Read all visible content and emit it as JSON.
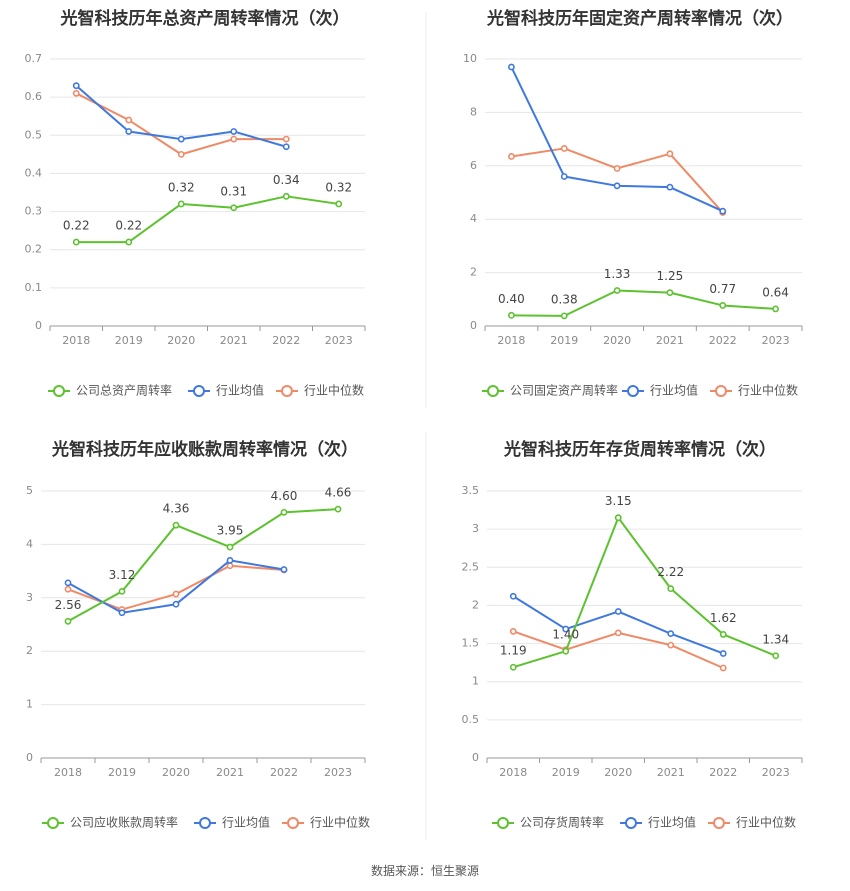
{
  "source": "数据来源：恒生聚源",
  "colors": {
    "company": "#5cc22e",
    "average": "#3f78de",
    "median": "#f08a66",
    "grid": "#e6e6e6",
    "axis": "#999999"
  },
  "chart_data": [
    {
      "type": "line",
      "title": "光智科技历年总资产周转率情况（次）",
      "categories": [
        "2018",
        "2019",
        "2020",
        "2021",
        "2022",
        "2023"
      ],
      "yticks": [
        "0",
        "0.1",
        "0.2",
        "0.3",
        "0.4",
        "0.5",
        "0.6",
        "0.7"
      ],
      "ylim": [
        0,
        0.7
      ],
      "series": [
        {
          "name": "公司总资产周转率",
          "key": "company",
          "values": [
            0.22,
            0.22,
            0.32,
            0.31,
            0.34,
            0.32
          ],
          "labels": [
            "0.22",
            "0.22",
            "0.32",
            "0.31",
            "0.34",
            "0.32"
          ]
        },
        {
          "name": "行业均值",
          "key": "average",
          "values": [
            0.63,
            0.51,
            0.49,
            0.51,
            0.47,
            null
          ]
        },
        {
          "name": "行业中位数",
          "key": "median",
          "values": [
            0.61,
            0.54,
            0.45,
            0.49,
            0.49,
            null
          ]
        }
      ]
    },
    {
      "type": "line",
      "title": "光智科技历年固定资产周转率情况（次）",
      "categories": [
        "2018",
        "2019",
        "2020",
        "2021",
        "2022",
        "2023"
      ],
      "yticks": [
        "0",
        "2",
        "4",
        "6",
        "8",
        "10"
      ],
      "ylim": [
        0,
        10
      ],
      "series": [
        {
          "name": "公司固定资产周转率",
          "key": "company",
          "values": [
            0.4,
            0.38,
            1.33,
            1.25,
            0.77,
            0.64
          ],
          "labels": [
            "0.40",
            "0.38",
            "1.33",
            "1.25",
            "0.77",
            "0.64"
          ]
        },
        {
          "name": "行业均值",
          "key": "average",
          "values": [
            9.7,
            5.6,
            5.25,
            5.2,
            4.3,
            null
          ]
        },
        {
          "name": "行业中位数",
          "key": "median",
          "values": [
            6.35,
            6.65,
            5.9,
            6.45,
            4.25,
            null
          ]
        }
      ]
    },
    {
      "type": "line",
      "title": "光智科技历年应收账款周转率情况（次）",
      "categories": [
        "2018",
        "2019",
        "2020",
        "2021",
        "2022",
        "2023"
      ],
      "yticks": [
        "0",
        "1",
        "2",
        "3",
        "4",
        "5"
      ],
      "ylim": [
        0,
        5
      ],
      "series": [
        {
          "name": "公司应收账款周转率",
          "key": "company",
          "values": [
            2.56,
            3.12,
            4.36,
            3.95,
            4.6,
            4.66
          ],
          "labels": [
            "2.56",
            "3.12",
            "4.36",
            "3.95",
            "4.60",
            "4.66"
          ]
        },
        {
          "name": "行业均值",
          "key": "average",
          "values": [
            3.28,
            2.72,
            2.88,
            3.7,
            3.53,
            null
          ]
        },
        {
          "name": "行业中位数",
          "key": "median",
          "values": [
            3.16,
            2.78,
            3.07,
            3.6,
            3.52,
            null
          ]
        }
      ]
    },
    {
      "type": "line",
      "title": "光智科技历年存货周转率情况（次）",
      "categories": [
        "2018",
        "2019",
        "2020",
        "2021",
        "2022",
        "2023"
      ],
      "yticks": [
        "0",
        "0.5",
        "1",
        "1.5",
        "2",
        "2.5",
        "3",
        "3.5"
      ],
      "ylim": [
        0,
        3.5
      ],
      "series": [
        {
          "name": "公司存货周转率",
          "key": "company",
          "values": [
            1.19,
            1.4,
            3.15,
            2.22,
            1.62,
            1.34
          ],
          "labels": [
            "1.19",
            "1.40",
            "3.15",
            "2.22",
            "1.62",
            "1.34"
          ]
        },
        {
          "name": "行业均值",
          "key": "average",
          "values": [
            2.12,
            1.69,
            1.92,
            1.63,
            1.37,
            null
          ]
        },
        {
          "name": "行业中位数",
          "key": "median",
          "values": [
            1.66,
            1.42,
            1.64,
            1.48,
            1.18,
            null
          ]
        }
      ]
    }
  ]
}
